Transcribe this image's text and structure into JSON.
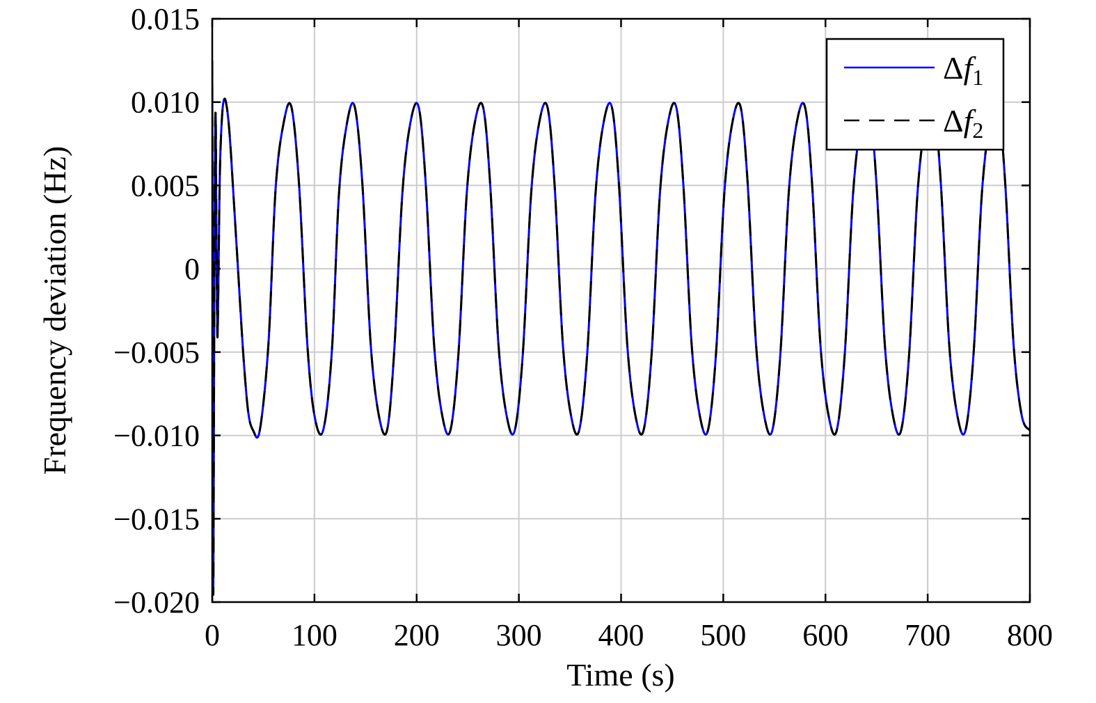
{
  "chart_data": {
    "type": "line",
    "title": "",
    "xlabel": "Time (s)",
    "ylabel": "Frequency deviation (Hz)",
    "xlim": [
      0,
      800
    ],
    "ylim": [
      -0.02,
      0.015
    ],
    "xticks": [
      0,
      100,
      200,
      300,
      400,
      500,
      600,
      700,
      800
    ],
    "xtick_labels": [
      "0",
      "100",
      "200",
      "300",
      "400",
      "500",
      "600",
      "700",
      "800"
    ],
    "yticks": [
      0.015,
      0.01,
      0.005,
      0,
      -0.005,
      -0.01,
      -0.015,
      -0.02
    ],
    "ytick_labels": [
      "0.015",
      "0.010",
      "0.005",
      "0",
      "−0.005",
      "−0.010",
      "−0.015",
      "−0.020"
    ],
    "grid": true,
    "legend_position": "top-right",
    "legend": [
      {
        "symbol": "Δ",
        "variable": "f",
        "subscript": "1",
        "style": "solid",
        "color": "#0000ff"
      },
      {
        "symbol": "Δ",
        "variable": "f",
        "subscript": "2",
        "style": "dashed",
        "color": "#000000"
      }
    ],
    "colors": {
      "series1": "#0000ff",
      "series2": "#000000",
      "grid": "#cccccc",
      "axes": "#000000"
    },
    "series": [
      {
        "legend_index": 0,
        "style": "solid",
        "color": "#0000ff",
        "x": [
          0,
          0.5,
          1,
          1.5,
          2,
          2.5,
          3,
          3.5,
          4,
          5,
          6,
          7,
          8,
          10,
          12,
          14,
          16,
          18,
          20,
          25,
          30,
          35,
          40,
          46.5,
          55,
          62,
          70,
          77.5,
          85,
          93,
          100,
          108.5,
          117,
          124,
          132,
          139.5,
          147,
          155,
          163,
          171,
          178,
          186,
          194,
          202,
          209,
          217,
          225,
          233,
          241,
          249,
          257,
          265,
          272,
          280,
          288,
          296,
          304,
          312,
          320,
          328,
          335,
          343,
          351,
          359,
          367,
          375,
          383,
          391,
          398,
          406,
          414,
          422,
          430,
          438,
          446,
          454,
          461,
          469,
          477,
          485,
          493,
          501,
          509,
          517,
          524,
          532,
          540,
          548,
          556,
          564,
          572,
          580,
          587,
          595,
          603,
          611,
          619,
          627,
          635,
          643,
          650,
          658,
          666,
          674,
          682,
          690,
          698,
          706,
          713,
          721,
          729,
          737,
          745,
          753,
          761,
          769,
          776,
          784,
          792,
          800
        ],
        "y": [
          0.0125,
          -0.008,
          -0.0195,
          -0.012,
          -0.002,
          0.005,
          0.009,
          0.0085,
          0.003,
          -0.004,
          -0.001,
          0.004,
          0.007,
          0.0095,
          0.0102,
          0.0098,
          0.0088,
          0.0072,
          0.0052,
          0.0002,
          -0.0048,
          -0.0085,
          -0.0097,
          -0.0097,
          -0.0045,
          0.0048,
          0.0088,
          0.0097,
          0.005,
          -0.0045,
          -0.0088,
          -0.0097,
          -0.005,
          0.0045,
          0.0088,
          0.0097,
          0.005,
          -0.0045,
          -0.0088,
          -0.0097,
          -0.005,
          0.0045,
          0.0088,
          0.0097,
          0.005,
          -0.0045,
          -0.0088,
          -0.0097,
          -0.005,
          0.0045,
          0.0088,
          0.0097,
          0.005,
          -0.0045,
          -0.0088,
          -0.0097,
          -0.005,
          0.0045,
          0.0088,
          0.0097,
          0.005,
          -0.0045,
          -0.0088,
          -0.0097,
          -0.005,
          0.0045,
          0.0088,
          0.0097,
          0.005,
          -0.0045,
          -0.0088,
          -0.0097,
          -0.005,
          0.0045,
          0.0088,
          0.0097,
          0.005,
          -0.0045,
          -0.0088,
          -0.0097,
          -0.005,
          0.0045,
          0.0088,
          0.0097,
          0.005,
          -0.0045,
          -0.0088,
          -0.0097,
          -0.005,
          0.0045,
          0.0088,
          0.0097,
          0.005,
          -0.0045,
          -0.0088,
          -0.0097,
          -0.005,
          0.0045,
          0.0088,
          0.0097,
          0.005,
          -0.0045,
          -0.0088,
          -0.0097,
          -0.005,
          0.0045,
          0.0088,
          0.0097,
          0.005,
          -0.0045,
          -0.0088,
          -0.0097,
          -0.005,
          0.0045,
          0.0088,
          0.0097,
          0.005,
          -0.0045,
          -0.0088,
          -0.0097
        ]
      },
      {
        "legend_index": 1,
        "style": "dashed",
        "color": "#000000",
        "x": [
          0,
          0.5,
          1,
          1.5,
          2,
          2.5,
          3,
          3.5,
          4,
          5,
          6,
          7,
          8,
          10,
          12,
          14,
          16,
          18,
          20,
          25,
          30,
          35,
          40,
          46.5,
          55,
          62,
          70,
          77.5,
          85,
          93,
          100,
          108.5,
          117,
          124,
          132,
          139.5,
          147,
          155,
          163,
          171,
          178,
          186,
          194,
          202,
          209,
          217,
          225,
          233,
          241,
          249,
          257,
          265,
          272,
          280,
          288,
          296,
          304,
          312,
          320,
          328,
          335,
          343,
          351,
          359,
          367,
          375,
          383,
          391,
          398,
          406,
          414,
          422,
          430,
          438,
          446,
          454,
          461,
          469,
          477,
          485,
          493,
          501,
          509,
          517,
          524,
          532,
          540,
          548,
          556,
          564,
          572,
          580,
          587,
          595,
          603,
          611,
          619,
          627,
          635,
          643,
          650,
          658,
          666,
          674,
          682,
          690,
          698,
          706,
          713,
          721,
          729,
          737,
          745,
          753,
          761,
          769,
          776,
          784,
          792,
          800
        ],
        "y": [
          0.0125,
          -0.008,
          -0.0195,
          -0.012,
          -0.002,
          0.005,
          0.009,
          0.0085,
          0.003,
          -0.004,
          -0.001,
          0.004,
          0.007,
          0.0095,
          0.0102,
          0.0098,
          0.0088,
          0.0072,
          0.0052,
          0.0002,
          -0.0048,
          -0.0085,
          -0.0097,
          -0.0097,
          -0.0045,
          0.0048,
          0.0088,
          0.0097,
          0.005,
          -0.0045,
          -0.0088,
          -0.0097,
          -0.005,
          0.0045,
          0.0088,
          0.0097,
          0.005,
          -0.0045,
          -0.0088,
          -0.0097,
          -0.005,
          0.0045,
          0.0088,
          0.0097,
          0.005,
          -0.0045,
          -0.0088,
          -0.0097,
          -0.005,
          0.0045,
          0.0088,
          0.0097,
          0.005,
          -0.0045,
          -0.0088,
          -0.0097,
          -0.005,
          0.0045,
          0.0088,
          0.0097,
          0.005,
          -0.0045,
          -0.0088,
          -0.0097,
          -0.005,
          0.0045,
          0.0088,
          0.0097,
          0.005,
          -0.0045,
          -0.0088,
          -0.0097,
          -0.005,
          0.0045,
          0.0088,
          0.0097,
          0.005,
          -0.0045,
          -0.0088,
          -0.0097,
          -0.005,
          0.0045,
          0.0088,
          0.0097,
          0.005,
          -0.0045,
          -0.0088,
          -0.0097,
          -0.005,
          0.0045,
          0.0088,
          0.0097,
          0.005,
          -0.0045,
          -0.0088,
          -0.0097,
          -0.005,
          0.0045,
          0.0088,
          0.0097,
          0.005,
          -0.0045,
          -0.0088,
          -0.0097,
          -0.005,
          0.0045,
          0.0088,
          0.0097,
          0.005,
          -0.0045,
          -0.0088,
          -0.0097,
          -0.005,
          0.0045,
          0.0088,
          0.0097,
          0.005,
          -0.0045,
          -0.0088,
          -0.0097
        ]
      }
    ]
  }
}
